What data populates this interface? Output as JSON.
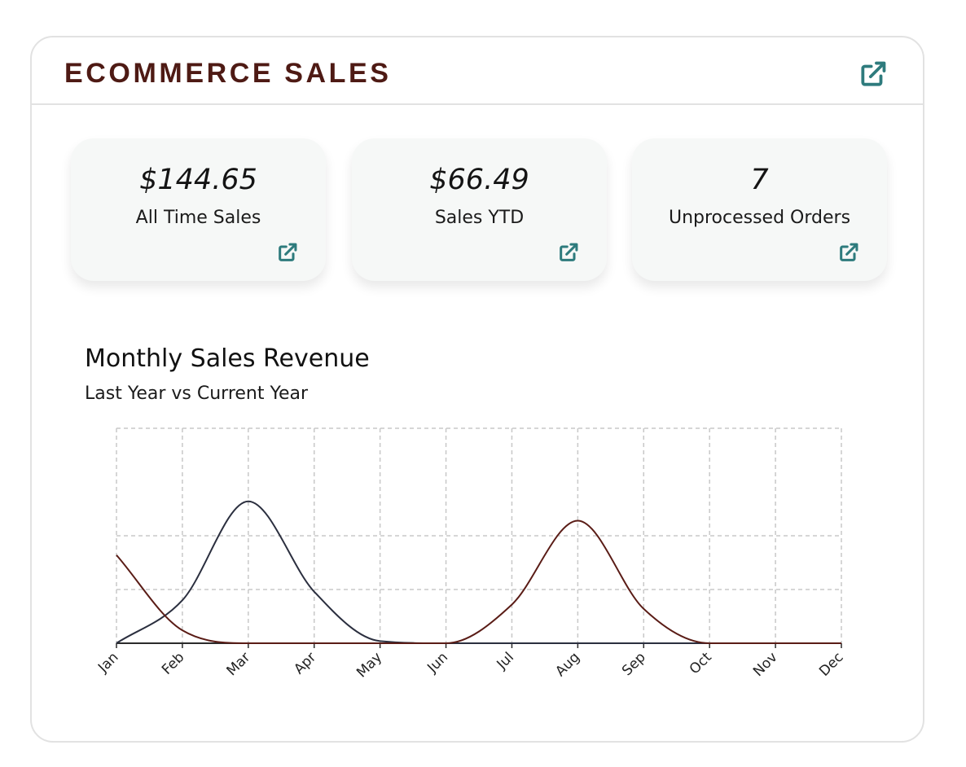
{
  "header": {
    "title": "ECOMMERCE SALES",
    "link_icon": "external-link-icon"
  },
  "stats": [
    {
      "value": "$144.65",
      "label": "All Time Sales",
      "link_icon": "external-link-icon"
    },
    {
      "value": "$66.49",
      "label": "Sales YTD",
      "link_icon": "external-link-icon"
    },
    {
      "value": "7",
      "label": "Unprocessed Orders",
      "link_icon": "external-link-icon"
    }
  ],
  "colors": {
    "title": "#4e1a14",
    "accent": "#2e7b7d",
    "series_last_year": "#2b2f3f",
    "series_current_year": "#5a1c16",
    "grid": "#c8c8c8"
  },
  "chart": {
    "title": "Monthly Sales Revenue",
    "subtitle": "Last Year vs Current Year"
  },
  "chart_data": {
    "type": "line",
    "title": "Monthly Sales Revenue",
    "subtitle": "Last Year vs Current Year",
    "smooth": true,
    "categories": [
      "Jan",
      "Feb",
      "Mar",
      "Apr",
      "May",
      "Jun",
      "Jul",
      "Aug",
      "Sep",
      "Oct",
      "Nov",
      "Dec"
    ],
    "series": [
      {
        "values": [
          0,
          20,
          66,
          24,
          1,
          0,
          0,
          0,
          0,
          0,
          0,
          0
        ],
        "color": "#2b2f3f"
      },
      {
        "values": [
          41,
          6,
          0,
          0,
          0,
          0,
          18,
          57,
          16,
          0,
          0,
          0
        ],
        "color": "#5a1c16"
      }
    ],
    "ylim": [
      0,
      100
    ],
    "y_gridlines": [
      0,
      25,
      50,
      100
    ],
    "grid": true,
    "y_tick_labels": false,
    "legend": "none"
  }
}
